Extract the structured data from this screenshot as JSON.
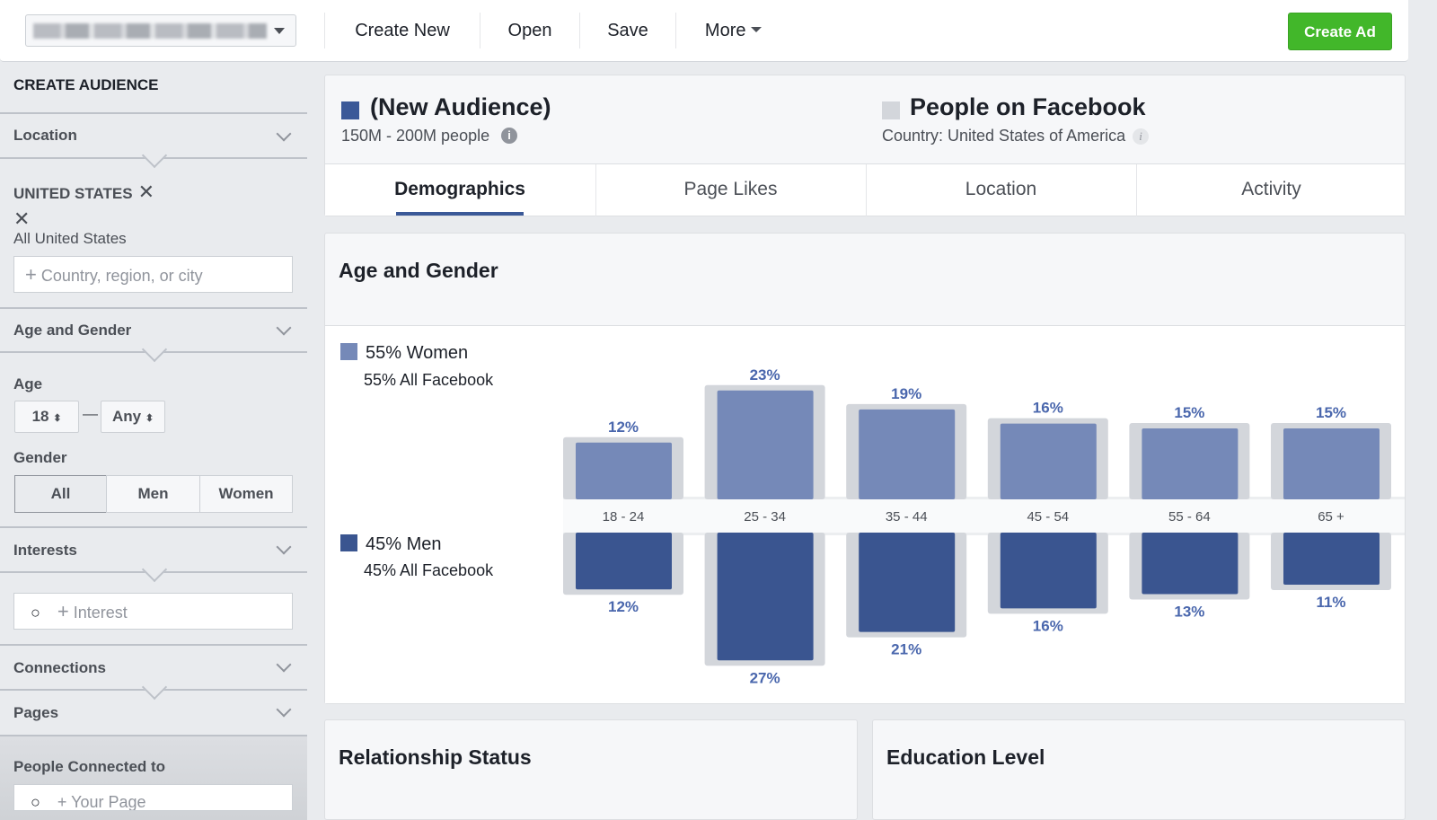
{
  "topbar": {
    "account_selector": "(blurred account name)",
    "create_new": "Create New",
    "open": "Open",
    "save": "Save",
    "more": "More",
    "create_ad": "Create Ad"
  },
  "sidebar": {
    "title": "CREATE AUDIENCE",
    "location": {
      "label": "Location",
      "selected": "UNITED STATES",
      "selected_sub": "All United States",
      "placeholder": "Country, region, or city"
    },
    "age_gender": {
      "label": "Age and Gender",
      "age_label": "Age",
      "age_min": "18",
      "age_max": "Any",
      "gender_label": "Gender",
      "genders": [
        "All",
        "Men",
        "Women"
      ],
      "selected_gender": "All"
    },
    "interests": {
      "label": "Interests",
      "placeholder": "Interest"
    },
    "connections": {
      "label": "Connections"
    },
    "pages": {
      "label": "Pages",
      "people_connected": "People Connected to",
      "placeholder": "Your Page"
    }
  },
  "header": {
    "audience_title": "(New Audience)",
    "audience_size": "150M - 200M people",
    "compare_title": "People on Facebook",
    "compare_sub": "Country: United States of America",
    "tabs": [
      "Demographics",
      "Page Likes",
      "Location",
      "Activity"
    ],
    "active_tab": "Demographics"
  },
  "age_gender_panel": {
    "title": "Age and Gender",
    "women_label": "55% Women",
    "women_sub": "55% All Facebook",
    "men_label": "45% Men",
    "men_sub": "45% All Facebook"
  },
  "chart_data": {
    "type": "bar",
    "categories": [
      "18 - 24",
      "25 - 34",
      "35 - 44",
      "45 - 54",
      "55 - 64",
      "65 +"
    ],
    "series": [
      {
        "name": "Women",
        "values": [
          12,
          23,
          19,
          16,
          15,
          15
        ],
        "labels": [
          "12%",
          "23%",
          "19%",
          "16%",
          "15%",
          "15%"
        ],
        "color": "#7589b8"
      },
      {
        "name": "Men",
        "values": [
          12,
          27,
          21,
          16,
          13,
          11
        ],
        "labels": [
          "12%",
          "27%",
          "21%",
          "16%",
          "13%",
          "11%"
        ],
        "color": "#3a5590"
      }
    ],
    "comparison_color": "#d3d6db",
    "layout": "diverging (women above, men below)"
  },
  "bottom_panels": [
    "Relationship Status",
    "Education Level"
  ],
  "colors": {
    "audience": "#3b5998",
    "compare": "#d3d6db",
    "create_ad": "#42b72a",
    "label": "#4a67ad"
  }
}
